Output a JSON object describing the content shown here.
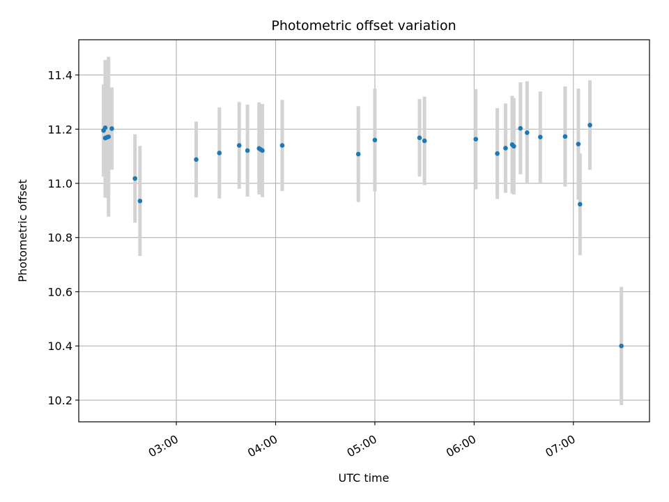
{
  "chart_data": {
    "type": "scatter",
    "title": "Photometric offset variation",
    "xlabel": "UTC time",
    "ylabel": "Photometric offset",
    "x_ticks": [
      "03:00",
      "04:00",
      "05:00",
      "06:00",
      "07:00"
    ],
    "y_ticks": [
      "10.2",
      "10.4",
      "10.6",
      "10.8",
      "11.0",
      "11.2",
      "11.4"
    ],
    "xlim": [
      "02:01",
      "07:46"
    ],
    "ylim": [
      10.12,
      11.53
    ],
    "grid": true,
    "point_color": "#1f77b4",
    "errorbar_color": "#d3d3d3",
    "points": [
      {
        "time": "02:16",
        "y": 11.195,
        "err": 0.17
      },
      {
        "time": "02:17",
        "y": 11.205,
        "err": 0.25
      },
      {
        "time": "02:17",
        "y": 11.167,
        "err": 0.22
      },
      {
        "time": "02:18",
        "y": 11.17,
        "err": 0.18
      },
      {
        "time": "02:19",
        "y": 11.172,
        "err": 0.295
      },
      {
        "time": "02:21",
        "y": 11.202,
        "err": 0.152
      },
      {
        "time": "02:35",
        "y": 11.018,
        "err": 0.163
      },
      {
        "time": "02:38",
        "y": 10.935,
        "err": 0.203
      },
      {
        "time": "03:12",
        "y": 11.088,
        "err": 0.14
      },
      {
        "time": "03:26",
        "y": 11.112,
        "err": 0.168
      },
      {
        "time": "03:38",
        "y": 11.14,
        "err": 0.16
      },
      {
        "time": "03:43",
        "y": 11.121,
        "err": 0.17
      },
      {
        "time": "03:50",
        "y": 11.129,
        "err": 0.17
      },
      {
        "time": "03:51",
        "y": 11.125,
        "err": 0.165
      },
      {
        "time": "03:52",
        "y": 11.121,
        "err": 0.172
      },
      {
        "time": "04:04",
        "y": 11.14,
        "err": 0.168
      },
      {
        "time": "04:50",
        "y": 11.108,
        "err": 0.177
      },
      {
        "time": "05:00",
        "y": 11.16,
        "err": 0.19
      },
      {
        "time": "05:27",
        "y": 11.168,
        "err": 0.143
      },
      {
        "time": "05:30",
        "y": 11.157,
        "err": 0.163
      },
      {
        "time": "06:01",
        "y": 11.163,
        "err": 0.185
      },
      {
        "time": "06:14",
        "y": 11.11,
        "err": 0.168
      },
      {
        "time": "06:19",
        "y": 11.13,
        "err": 0.165
      },
      {
        "time": "06:23",
        "y": 11.143,
        "err": 0.18
      },
      {
        "time": "06:24",
        "y": 11.137,
        "err": 0.178
      },
      {
        "time": "06:28",
        "y": 11.203,
        "err": 0.17
      },
      {
        "time": "06:32",
        "y": 11.187,
        "err": 0.19
      },
      {
        "time": "06:40",
        "y": 11.171,
        "err": 0.168
      },
      {
        "time": "06:55",
        "y": 11.173,
        "err": 0.185
      },
      {
        "time": "07:03",
        "y": 11.145,
        "err": 0.205
      },
      {
        "time": "07:04",
        "y": 10.923,
        "err": 0.188
      },
      {
        "time": "07:10",
        "y": 11.215,
        "err": 0.165
      },
      {
        "time": "07:29",
        "y": 10.4,
        "err": 0.218
      }
    ]
  }
}
